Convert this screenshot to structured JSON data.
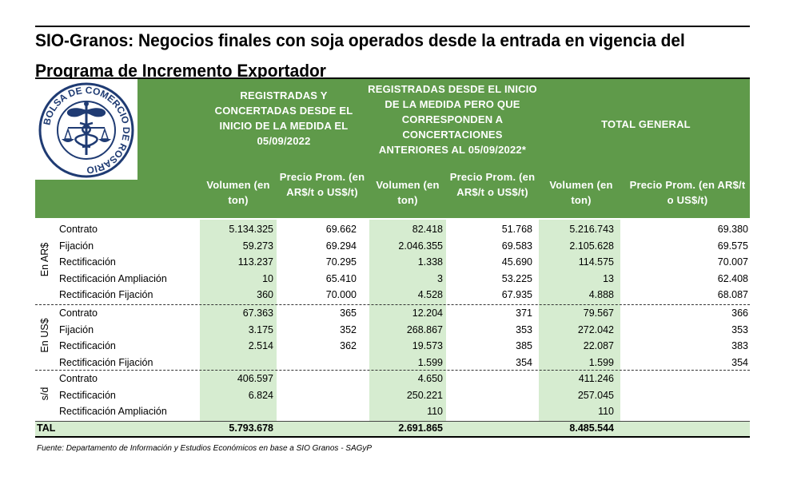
{
  "title": "SIO-Granos: Negocios finales con soja operados desde la entrada en vigencia del Programa de Incremento Exportador",
  "title_line1": "SIO-Granos: Negocios finales con soja operados desde la entrada en vigencia del",
  "title_line2": "Programa de Incremento Exportador",
  "logo_text": "BOLSA DE COMERCIO DE ROSARIO",
  "header": {
    "group1": "REGISTRADAS Y CONCERTADAS DESDE EL INICIO DE LA MEDIDA EL 05/09/2022",
    "group2": "REGISTRADAS DESDE EL INICIO DE LA MEDIDA PERO QUE CORRESPONDEN A CONCERTACIONES ANTERIORES AL 05/09/2022*",
    "group3": "TOTAL GENERAL",
    "vol": "Volumen (en ton)",
    "price": "Precio Prom. (en AR$/t o US$/t)",
    "price_total": "Precio Prom. (en AR$/t o US$/t)"
  },
  "sections": [
    {
      "label": "En AR$",
      "rows": [
        {
          "name": "Contrato",
          "v1": "5.134.325",
          "p1": "69.662",
          "v2": "82.418",
          "p2": "51.768",
          "vt": "5.216.743",
          "pt": "69.380"
        },
        {
          "name": "Fijación",
          "v1": "59.273",
          "p1": "69.294",
          "v2": "2.046.355",
          "p2": "69.583",
          "vt": "2.105.628",
          "pt": "69.575"
        },
        {
          "name": "Rectificación",
          "v1": "113.237",
          "p1": "70.295",
          "v2": "1.338",
          "p2": "45.690",
          "vt": "114.575",
          "pt": "70.007"
        },
        {
          "name": "Rectificación Ampliación",
          "v1": "10",
          "p1": "65.410",
          "v2": "3",
          "p2": "53.225",
          "vt": "13",
          "pt": "62.408"
        },
        {
          "name": "Rectificación Fijación",
          "v1": "360",
          "p1": "70.000",
          "v2": "4.528",
          "p2": "67.935",
          "vt": "4.888",
          "pt": "68.087"
        }
      ]
    },
    {
      "label": "En US$",
      "rows": [
        {
          "name": "Contrato",
          "v1": "67.363",
          "p1": "365",
          "v2": "12.204",
          "p2": "371",
          "vt": "79.567",
          "pt": "366"
        },
        {
          "name": "Fijación",
          "v1": "3.175",
          "p1": "352",
          "v2": "268.867",
          "p2": "353",
          "vt": "272.042",
          "pt": "353"
        },
        {
          "name": "Rectificación",
          "v1": "2.514",
          "p1": "362",
          "v2": "19.573",
          "p2": "385",
          "vt": "22.087",
          "pt": "383"
        },
        {
          "name": "Rectificación Fijación",
          "v1": "",
          "p1": "",
          "v2": "1.599",
          "p2": "354",
          "vt": "1.599",
          "pt": "354"
        }
      ]
    },
    {
      "label": "s/d",
      "rows": [
        {
          "name": "Contrato",
          "v1": "406.597",
          "p1": "",
          "v2": "4.650",
          "p2": "",
          "vt": "411.246",
          "pt": ""
        },
        {
          "name": "Rectificación",
          "v1": "6.824",
          "p1": "",
          "v2": "250.221",
          "p2": "",
          "vt": "257.045",
          "pt": ""
        },
        {
          "name": "Rectificación Ampliación",
          "v1": "",
          "p1": "",
          "v2": "110",
          "p2": "",
          "vt": "110",
          "pt": ""
        }
      ]
    }
  ],
  "total": {
    "label": "TAL",
    "v1": "5.793.678",
    "v2": "2.691.865",
    "vt": "8.485.544"
  },
  "footer": "Fuente: Departamento de Información y Estudios Económicos en base a SIO Granos - SAGyP",
  "colors": {
    "header_green": "#5f9a4a",
    "band_green": "#d6ecd0",
    "logo_navy": "#1f3b73"
  }
}
